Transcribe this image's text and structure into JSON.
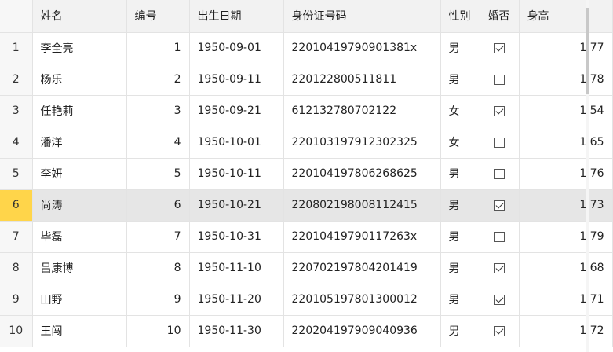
{
  "columns": {
    "index": "",
    "name": "姓名",
    "number": "编号",
    "birth": "出生日期",
    "id_card": "身份证号码",
    "gender": "性别",
    "married": "婚否",
    "height": "身高"
  },
  "rows": [
    {
      "idx": "1",
      "name": "李全亮",
      "number": "1",
      "birth": "1950-09-01",
      "id_card": "22010419790901381x",
      "gender": "男",
      "married": true,
      "height": "1.77"
    },
    {
      "idx": "2",
      "name": "杨乐",
      "number": "2",
      "birth": "1950-09-11",
      "id_card": "220122800511811",
      "gender": "男",
      "married": false,
      "height": "1.78"
    },
    {
      "idx": "3",
      "name": "任艳莉",
      "number": "3",
      "birth": "1950-09-21",
      "id_card": "612132780702122",
      "gender": "女",
      "married": true,
      "height": "1.54"
    },
    {
      "idx": "4",
      "name": "潘洋",
      "number": "4",
      "birth": "1950-10-01",
      "id_card": "220103197912302325",
      "gender": "女",
      "married": false,
      "height": "1.65"
    },
    {
      "idx": "5",
      "name": "李妍",
      "number": "5",
      "birth": "1950-10-11",
      "id_card": "220104197806268625",
      "gender": "男",
      "married": false,
      "height": "1.76"
    },
    {
      "idx": "6",
      "name": "尚涛",
      "number": "6",
      "birth": "1950-10-21",
      "id_card": "220802198008112415",
      "gender": "男",
      "married": true,
      "height": "1.73",
      "selected": true
    },
    {
      "idx": "7",
      "name": "毕磊",
      "number": "7",
      "birth": "1950-10-31",
      "id_card": "22010419790117263x",
      "gender": "男",
      "married": false,
      "height": "1.79"
    },
    {
      "idx": "8",
      "name": "吕康博",
      "number": "8",
      "birth": "1950-11-10",
      "id_card": "220702197804201419",
      "gender": "男",
      "married": true,
      "height": "1.68"
    },
    {
      "idx": "9",
      "name": "田野",
      "number": "9",
      "birth": "1950-11-20",
      "id_card": "220105197801300012",
      "gender": "男",
      "married": true,
      "height": "1.71"
    },
    {
      "idx": "10",
      "name": "王闯",
      "number": "10",
      "birth": "1950-11-30",
      "id_card": "220204197909040936",
      "gender": "男",
      "married": true,
      "height": "1.72"
    }
  ],
  "colors": {
    "selected_index_bg": "#ffd54a",
    "selected_row_bg": "#e6e6e6",
    "header_bg": "#f2f2f2"
  }
}
